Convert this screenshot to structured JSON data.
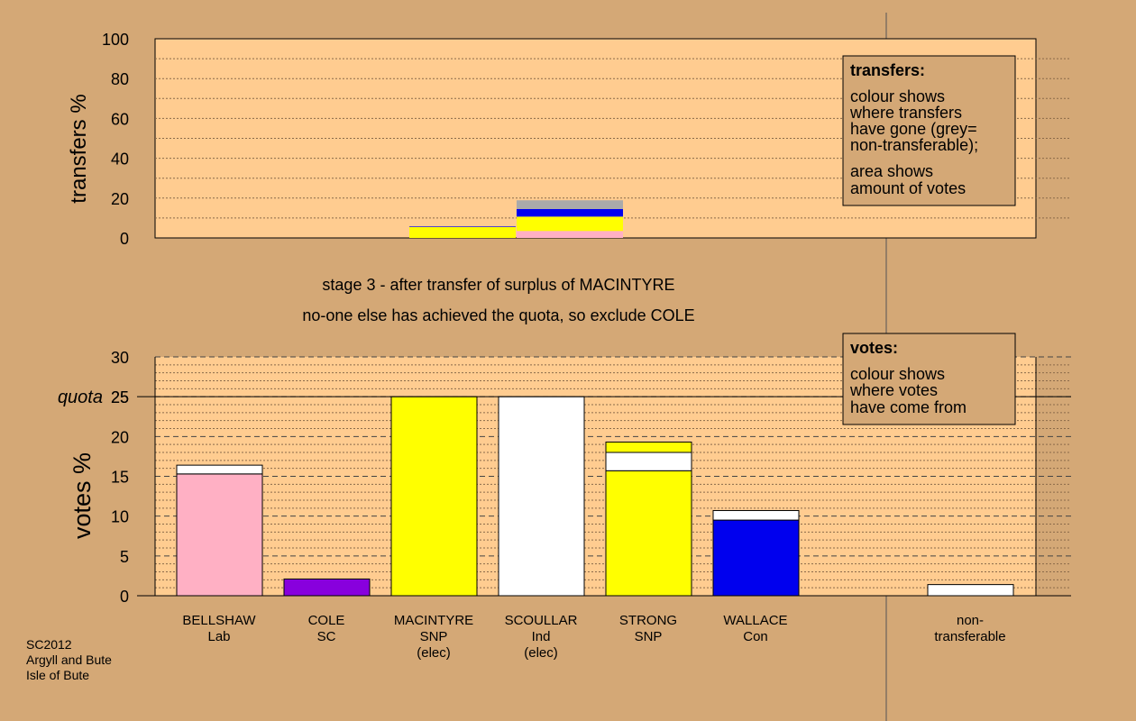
{
  "stage_line1": "stage 3 - after transfer of surplus of MACINTYRE",
  "stage_line2": "no-one else has achieved the quota, so exclude COLE",
  "footer": [
    "SC2012",
    "Argyll and Bute",
    "Isle of Bute"
  ],
  "colors": {
    "background": "#d4a876",
    "plot_area": "#ffcc90",
    "Lab": "#ffb0c4",
    "SC": "#8800dd",
    "SNP": "#ffff00",
    "Ind": "#ffffff",
    "Con": "#0000ee",
    "non_transferable": "#aaaaaa"
  },
  "chart_data": [
    {
      "type": "bar",
      "stacked": true,
      "ylabel": "transfers %",
      "ylim": [
        0,
        100
      ],
      "yticks": [
        0,
        20,
        40,
        60,
        80,
        100
      ],
      "grid": true,
      "legend": {
        "placement": "top-right",
        "title": "transfers:",
        "lines": [
          "colour shows",
          "where transfers",
          "have gone (grey=",
          "non-transferable);",
          "area shows",
          "amount of votes"
        ]
      },
      "bars": [
        {
          "candidate": "MACINTYRE",
          "segments": [
            {
              "from": "SNP",
              "value": 5.5
            },
            {
              "from": "Con",
              "value": 0.3
            }
          ]
        },
        {
          "candidate": "SCOULLAR",
          "segments": [
            {
              "from": "Lab",
              "value": 3.5
            },
            {
              "from": "SNP",
              "value": 7.2
            },
            {
              "from": "Con",
              "value": 3.8
            },
            {
              "from": "non_transferable",
              "value": 4.4
            }
          ]
        }
      ]
    },
    {
      "type": "bar",
      "stacked": true,
      "ylabel": "votes %",
      "ylim": [
        0,
        30
      ],
      "yticks": [
        0,
        5,
        10,
        15,
        20,
        25,
        30
      ],
      "quota": 25,
      "quota_label": "quota",
      "grid": true,
      "legend": {
        "placement": "top-right",
        "title": "votes:",
        "lines": [
          "colour shows",
          "where votes",
          "have come from"
        ]
      },
      "categories": [
        {
          "name": "BELLSHAW",
          "party": "Lab",
          "note": ""
        },
        {
          "name": "COLE",
          "party": "SC",
          "note": ""
        },
        {
          "name": "MACINTYRE",
          "party": "SNP",
          "note": "(elec)"
        },
        {
          "name": "SCOULLAR",
          "party": "Ind",
          "note": "(elec)"
        },
        {
          "name": "STRONG",
          "party": "SNP",
          "note": ""
        },
        {
          "name": "WALLACE",
          "party": "Con",
          "note": ""
        },
        {
          "name": "",
          "party": "",
          "note": ""
        },
        {
          "name": "non-",
          "party": "transferable",
          "note": ""
        }
      ],
      "bars": [
        {
          "candidate": "BELLSHAW",
          "segments": [
            {
              "from": "Lab",
              "value": 15.3
            },
            {
              "from": "Ind",
              "value": 1.1
            }
          ]
        },
        {
          "candidate": "COLE",
          "segments": [
            {
              "from": "SC",
              "value": 2.1
            }
          ]
        },
        {
          "candidate": "MACINTYRE",
          "segments": [
            {
              "from": "SNP",
              "value": 25.0
            }
          ]
        },
        {
          "candidate": "SCOULLAR",
          "segments": [
            {
              "from": "Ind",
              "value": 25.0
            }
          ]
        },
        {
          "candidate": "STRONG",
          "segments": [
            {
              "from": "SNP",
              "value": 15.7
            },
            {
              "from": "Ind",
              "value": 2.3
            },
            {
              "from": "SNP",
              "value": 1.3
            }
          ]
        },
        {
          "candidate": "WALLACE",
          "segments": [
            {
              "from": "Con",
              "value": 9.5
            },
            {
              "from": "Ind",
              "value": 1.2
            }
          ]
        },
        {
          "candidate": "",
          "segments": []
        },
        {
          "candidate": "non-transferable",
          "segments": [
            {
              "from": "Ind",
              "value": 1.4
            }
          ]
        }
      ]
    }
  ]
}
